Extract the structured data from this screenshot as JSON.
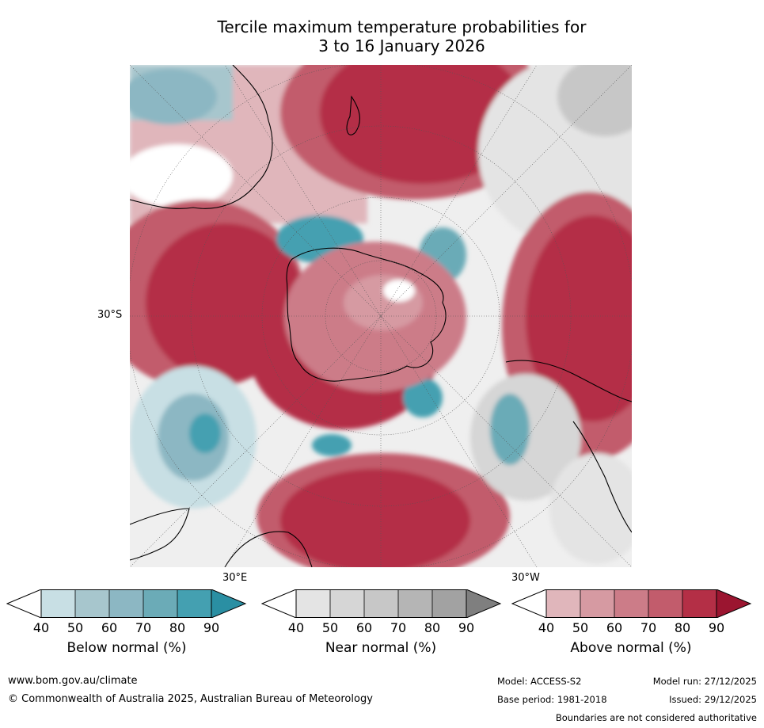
{
  "title": {
    "line1": "Tercile maximum temperature probabilities for",
    "line2": "3 to 16 January 2026"
  },
  "map": {
    "projection": "south-polar-stereographic",
    "lat_label": "30°S",
    "lon_labels": [
      "30°E",
      "30°W"
    ],
    "colors": {
      "above": [
        "#e0b6bb",
        "#d69aa2",
        "#cc7c88",
        "#c25c6c",
        "#b42f46",
        "#9b1530"
      ],
      "below": [
        "#c8dfe4",
        "#a7c6cd",
        "#8cb7c3",
        "#6babb7",
        "#44a0b1",
        "#2a8fa3"
      ],
      "near": [
        "#e4e4e4",
        "#d6d6d6",
        "#c7c7c7",
        "#b5b5b5",
        "#a2a2a2",
        "#7f7f7f"
      ],
      "land_line": "#000000"
    }
  },
  "legends": [
    {
      "name": "below",
      "title": "Below normal (%)",
      "ticks": [
        "40",
        "50",
        "60",
        "70",
        "80",
        "90"
      ]
    },
    {
      "name": "near",
      "title": "Near normal (%)",
      "ticks": [
        "40",
        "50",
        "60",
        "70",
        "80",
        "90"
      ]
    },
    {
      "name": "above",
      "title": "Above normal (%)",
      "ticks": [
        "40",
        "50",
        "60",
        "70",
        "80",
        "90"
      ]
    }
  ],
  "footer": {
    "url": "www.bom.gov.au/climate",
    "copyright": "© Commonwealth of Australia 2025, Australian Bureau of Meteorology",
    "model": "Model: ACCESS-S2",
    "model_run": "Model run: 27/12/2025",
    "base_period": "Base period: 1981-2018",
    "issued": "Issued: 29/12/2025",
    "disclaimer": "Boundaries are not considered authoritative"
  }
}
